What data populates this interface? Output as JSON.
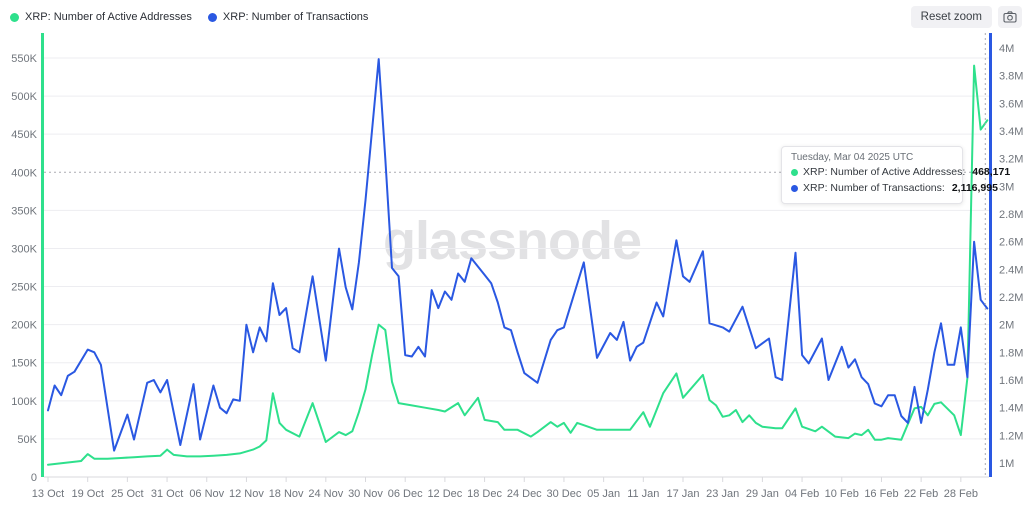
{
  "header": {
    "legend": [
      {
        "label": "XRP: Number of Active Addresses",
        "color": "#2ee08c"
      },
      {
        "label": "XRP: Number of Transactions",
        "color": "#2a58e2"
      }
    ],
    "reset_zoom_label": "Reset zoom",
    "icons": {
      "screenshot": "camera-icon"
    }
  },
  "watermark": "glassnode",
  "tooltip": {
    "title": "Tuesday, Mar 04 2025 UTC",
    "rows": [
      {
        "label": "XRP: Number of Active Addresses:",
        "value": "468,171",
        "color": "#2ee08c"
      },
      {
        "label": "XRP: Number of Transactions:",
        "value": "2,116,995",
        "color": "#2a58e2"
      }
    ]
  },
  "chart_data": {
    "type": "line",
    "title": "",
    "grid": true,
    "legend_position": "top-left",
    "x_axis": {
      "ticks": [
        {
          "day": 0,
          "label": "13 Oct"
        },
        {
          "day": 6,
          "label": "19 Oct"
        },
        {
          "day": 12,
          "label": "25 Oct"
        },
        {
          "day": 18,
          "label": "31 Oct"
        },
        {
          "day": 24,
          "label": "06 Nov"
        },
        {
          "day": 30,
          "label": "12 Nov"
        },
        {
          "day": 36,
          "label": "18 Nov"
        },
        {
          "day": 42,
          "label": "24 Nov"
        },
        {
          "day": 48,
          "label": "30 Nov"
        },
        {
          "day": 54,
          "label": "06 Dec"
        },
        {
          "day": 60,
          "label": "12 Dec"
        },
        {
          "day": 66,
          "label": "18 Dec"
        },
        {
          "day": 72,
          "label": "24 Dec"
        },
        {
          "day": 78,
          "label": "30 Dec"
        },
        {
          "day": 84,
          "label": "05 Jan"
        },
        {
          "day": 90,
          "label": "11 Jan"
        },
        {
          "day": 96,
          "label": "17 Jan"
        },
        {
          "day": 102,
          "label": "23 Jan"
        },
        {
          "day": 108,
          "label": "29 Jan"
        },
        {
          "day": 114,
          "label": "04 Feb"
        },
        {
          "day": 120,
          "label": "10 Feb"
        },
        {
          "day": 126,
          "label": "16 Feb"
        },
        {
          "day": 132,
          "label": "22 Feb"
        },
        {
          "day": 138,
          "label": "28 Feb"
        }
      ],
      "range_days": [
        0,
        142.5
      ]
    },
    "left_axis": {
      "series": "XRP: Number of Active Addresses",
      "color": "#2ee08c",
      "min": 0,
      "max": 550000,
      "ticks": [
        {
          "label": "550K",
          "value": 550000
        },
        {
          "label": "500K",
          "value": 500000
        },
        {
          "label": "450K",
          "value": 450000
        },
        {
          "label": "400K",
          "value": 400000
        },
        {
          "label": "350K",
          "value": 350000
        },
        {
          "label": "300K",
          "value": 300000
        },
        {
          "label": "250K",
          "value": 250000
        },
        {
          "label": "200K",
          "value": 200000
        },
        {
          "label": "150K",
          "value": 150000
        },
        {
          "label": "100K",
          "value": 100000
        },
        {
          "label": "50K",
          "value": 50000
        },
        {
          "label": "0",
          "value": 0
        }
      ]
    },
    "right_axis": {
      "series": "XRP: Number of Transactions",
      "color": "#2a58e2",
      "min": 1000000,
      "max": 4000000,
      "ticks": [
        {
          "label": "4M",
          "value": 4000000
        },
        {
          "label": "3.8M",
          "value": 3800000
        },
        {
          "label": "3.6M",
          "value": 3600000
        },
        {
          "label": "3.4M",
          "value": 3400000
        },
        {
          "label": "3.2M",
          "value": 3200000
        },
        {
          "label": "3M",
          "value": 3000000
        },
        {
          "label": "2.8M",
          "value": 2800000
        },
        {
          "label": "2.6M",
          "value": 2600000
        },
        {
          "label": "2.4M",
          "value": 2400000
        },
        {
          "label": "2.2M",
          "value": 2200000
        },
        {
          "label": "2M",
          "value": 2000000
        },
        {
          "label": "1.8M",
          "value": 1800000
        },
        {
          "label": "1.6M",
          "value": 1600000
        },
        {
          "label": "1.4M",
          "value": 1400000
        },
        {
          "label": "1.2M",
          "value": 1200000
        },
        {
          "label": "1M",
          "value": 1000000
        }
      ]
    },
    "crosshair": {
      "day": 141.7,
      "left_axis_value": 400000,
      "hovered_label": "Mar 04 2025"
    },
    "series": [
      {
        "name": "XRP: Number of Active Addresses",
        "axis": "left",
        "color": "#2ee08c",
        "points": [
          [
            0,
            16000
          ],
          [
            2,
            18000
          ],
          [
            4,
            20000
          ],
          [
            5,
            21000
          ],
          [
            6,
            30000
          ],
          [
            7,
            24000
          ],
          [
            9,
            24000
          ],
          [
            11,
            25000
          ],
          [
            13,
            26000
          ],
          [
            15,
            27000
          ],
          [
            17,
            28000
          ],
          [
            18,
            36000
          ],
          [
            19,
            29000
          ],
          [
            21,
            27000
          ],
          [
            23,
            27000
          ],
          [
            25,
            28000
          ],
          [
            27,
            29000
          ],
          [
            29,
            31000
          ],
          [
            31,
            36000
          ],
          [
            32,
            40000
          ],
          [
            33,
            48000
          ],
          [
            34,
            110000
          ],
          [
            35,
            71000
          ],
          [
            36,
            62000
          ],
          [
            38,
            53000
          ],
          [
            40,
            97000
          ],
          [
            42,
            46000
          ],
          [
            44,
            59000
          ],
          [
            45,
            55000
          ],
          [
            46,
            60000
          ],
          [
            47,
            85000
          ],
          [
            48,
            115000
          ],
          [
            49,
            160000
          ],
          [
            50,
            200000
          ],
          [
            51,
            193000
          ],
          [
            52,
            125000
          ],
          [
            53,
            97000
          ],
          [
            55,
            94000
          ],
          [
            57,
            91000
          ],
          [
            59,
            88000
          ],
          [
            60,
            86000
          ],
          [
            62,
            97000
          ],
          [
            63,
            81000
          ],
          [
            65,
            104000
          ],
          [
            66,
            75000
          ],
          [
            68,
            72000
          ],
          [
            69,
            62000
          ],
          [
            71,
            62000
          ],
          [
            73,
            53000
          ],
          [
            74,
            59000
          ],
          [
            76,
            72000
          ],
          [
            77,
            66000
          ],
          [
            78,
            71000
          ],
          [
            79,
            58000
          ],
          [
            80,
            71000
          ],
          [
            81,
            68000
          ],
          [
            83,
            62000
          ],
          [
            85,
            62000
          ],
          [
            88,
            62000
          ],
          [
            90,
            85000
          ],
          [
            91,
            66000
          ],
          [
            93,
            110000
          ],
          [
            95,
            136000
          ],
          [
            96,
            104000
          ],
          [
            99,
            134000
          ],
          [
            100,
            101000
          ],
          [
            101,
            94000
          ],
          [
            102,
            79000
          ],
          [
            103,
            81000
          ],
          [
            104,
            88000
          ],
          [
            105,
            72000
          ],
          [
            106,
            81000
          ],
          [
            107,
            71000
          ],
          [
            108,
            66000
          ],
          [
            110,
            64000
          ],
          [
            111,
            64000
          ],
          [
            113,
            90000
          ],
          [
            114,
            66000
          ],
          [
            116,
            60000
          ],
          [
            117,
            66000
          ],
          [
            119,
            53000
          ],
          [
            121,
            51000
          ],
          [
            122,
            57000
          ],
          [
            123,
            55000
          ],
          [
            124,
            62000
          ],
          [
            125,
            49000
          ],
          [
            126,
            49000
          ],
          [
            127,
            51000
          ],
          [
            129,
            49000
          ],
          [
            131,
            90000
          ],
          [
            132,
            92000
          ],
          [
            133,
            81000
          ],
          [
            134,
            96000
          ],
          [
            135,
            98000
          ],
          [
            137,
            81000
          ],
          [
            138,
            55000
          ],
          [
            139,
            130000
          ],
          [
            140,
            540000
          ],
          [
            141,
            456000
          ],
          [
            142,
            468171
          ]
        ]
      },
      {
        "name": "XRP: Number of Transactions",
        "axis": "right",
        "color": "#2a58e2",
        "points": [
          [
            0,
            1380000
          ],
          [
            1,
            1560000
          ],
          [
            2,
            1490000
          ],
          [
            3,
            1630000
          ],
          [
            4,
            1660000
          ],
          [
            6,
            1820000
          ],
          [
            7,
            1800000
          ],
          [
            8,
            1710000
          ],
          [
            10,
            1090000
          ],
          [
            12,
            1350000
          ],
          [
            13,
            1170000
          ],
          [
            15,
            1580000
          ],
          [
            16,
            1600000
          ],
          [
            17,
            1510000
          ],
          [
            18,
            1600000
          ],
          [
            20,
            1130000
          ],
          [
            22,
            1570000
          ],
          [
            23,
            1170000
          ],
          [
            25,
            1560000
          ],
          [
            26,
            1400000
          ],
          [
            27,
            1360000
          ],
          [
            28,
            1460000
          ],
          [
            29,
            1450000
          ],
          [
            30,
            2000000
          ],
          [
            31,
            1800000
          ],
          [
            32,
            1980000
          ],
          [
            33,
            1880000
          ],
          [
            34,
            2300000
          ],
          [
            35,
            2070000
          ],
          [
            36,
            2120000
          ],
          [
            37,
            1830000
          ],
          [
            38,
            1800000
          ],
          [
            40,
            2350000
          ],
          [
            42,
            1740000
          ],
          [
            44,
            2550000
          ],
          [
            45,
            2270000
          ],
          [
            46,
            2110000
          ],
          [
            47,
            2450000
          ],
          [
            48,
            2900000
          ],
          [
            50,
            3920000
          ],
          [
            51,
            3200000
          ],
          [
            52,
            2410000
          ],
          [
            53,
            2350000
          ],
          [
            54,
            1780000
          ],
          [
            55,
            1770000
          ],
          [
            56,
            1840000
          ],
          [
            57,
            1770000
          ],
          [
            58,
            2250000
          ],
          [
            59,
            2120000
          ],
          [
            60,
            2240000
          ],
          [
            61,
            2180000
          ],
          [
            62,
            2370000
          ],
          [
            63,
            2310000
          ],
          [
            64,
            2480000
          ],
          [
            65,
            2420000
          ],
          [
            66,
            2360000
          ],
          [
            67,
            2300000
          ],
          [
            68,
            2160000
          ],
          [
            69,
            1980000
          ],
          [
            70,
            1960000
          ],
          [
            71,
            1800000
          ],
          [
            72,
            1650000
          ],
          [
            74,
            1580000
          ],
          [
            76,
            1890000
          ],
          [
            77,
            1960000
          ],
          [
            78,
            1980000
          ],
          [
            81,
            2450000
          ],
          [
            83,
            1760000
          ],
          [
            85,
            1940000
          ],
          [
            86,
            1890000
          ],
          [
            87,
            2020000
          ],
          [
            88,
            1740000
          ],
          [
            89,
            1840000
          ],
          [
            90,
            1870000
          ],
          [
            92,
            2160000
          ],
          [
            93,
            2060000
          ],
          [
            95,
            2610000
          ],
          [
            96,
            2350000
          ],
          [
            97,
            2310000
          ],
          [
            99,
            2530000
          ],
          [
            100,
            2010000
          ],
          [
            102,
            1980000
          ],
          [
            103,
            1950000
          ],
          [
            105,
            2130000
          ],
          [
            107,
            1830000
          ],
          [
            109,
            1900000
          ],
          [
            110,
            1620000
          ],
          [
            111,
            1600000
          ],
          [
            113,
            2520000
          ],
          [
            114,
            1780000
          ],
          [
            115,
            1720000
          ],
          [
            117,
            1900000
          ],
          [
            118,
            1600000
          ],
          [
            120,
            1840000
          ],
          [
            121,
            1690000
          ],
          [
            122,
            1750000
          ],
          [
            123,
            1620000
          ],
          [
            124,
            1570000
          ],
          [
            125,
            1430000
          ],
          [
            126,
            1410000
          ],
          [
            127,
            1490000
          ],
          [
            128,
            1490000
          ],
          [
            129,
            1340000
          ],
          [
            130,
            1290000
          ],
          [
            131,
            1550000
          ],
          [
            132,
            1290000
          ],
          [
            133,
            1530000
          ],
          [
            134,
            1800000
          ],
          [
            135,
            2010000
          ],
          [
            136,
            1710000
          ],
          [
            137,
            1710000
          ],
          [
            138,
            1980000
          ],
          [
            139,
            1620000
          ],
          [
            140,
            2600000
          ],
          [
            141,
            2180000
          ],
          [
            142,
            2116995
          ]
        ]
      }
    ]
  }
}
